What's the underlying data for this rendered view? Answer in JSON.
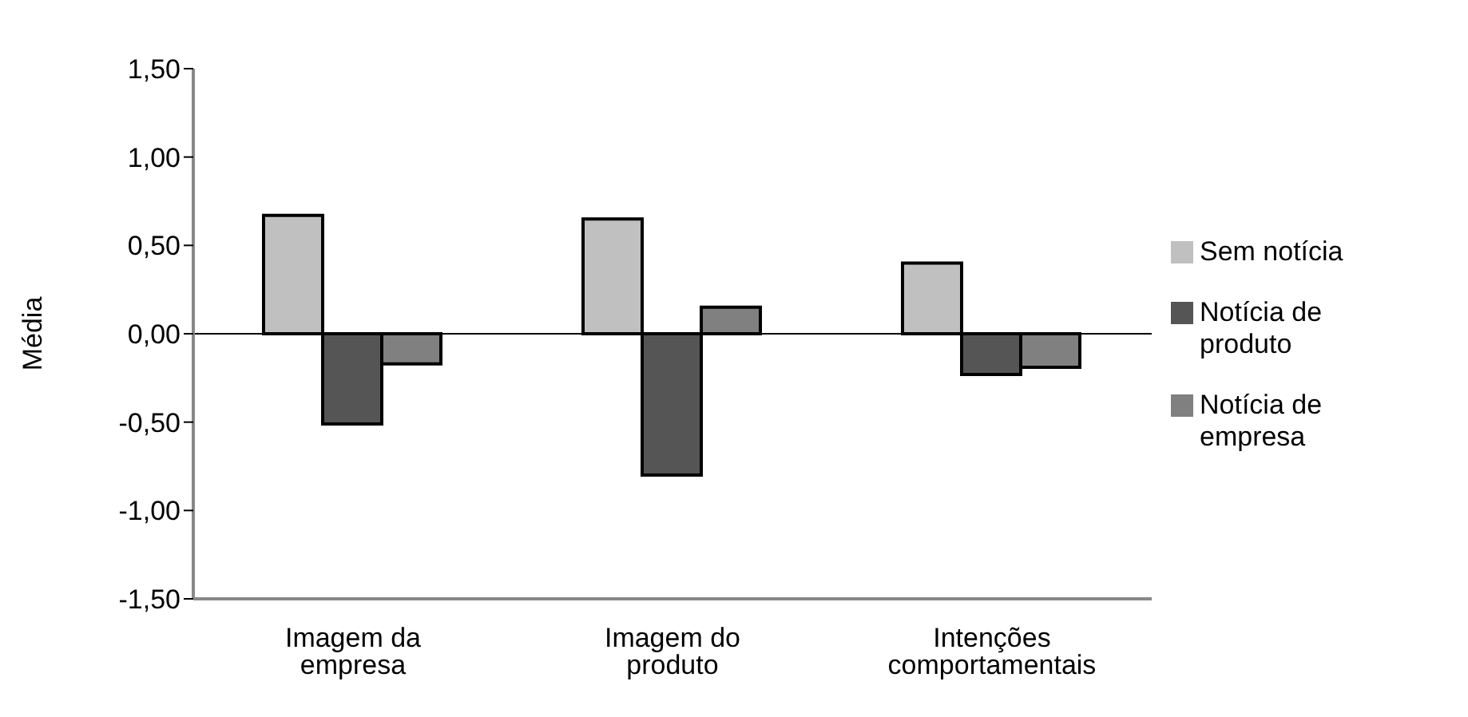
{
  "chart_data": {
    "type": "bar",
    "ylabel": "Média",
    "categories": [
      "Imagem da empresa",
      "Imagem do produto",
      "Intenções comportamentais"
    ],
    "series": [
      {
        "name": "Sem notícia",
        "color": "#c0c0c0",
        "values": [
          0.67,
          0.65,
          0.4
        ]
      },
      {
        "name": "Notícia de produto",
        "color": "#555555",
        "values": [
          -0.51,
          -0.8,
          -0.23
        ]
      },
      {
        "name": "Notícia de empresa",
        "color": "#808080",
        "values": [
          -0.17,
          0.15,
          -0.19
        ]
      }
    ],
    "ylim": [
      -1.5,
      1.5
    ],
    "yticks": [
      {
        "value": -1.5,
        "label": "-1,50"
      },
      {
        "value": -1,
        "label": "-1,00"
      },
      {
        "value": -0.5,
        "label": "-0,50"
      },
      {
        "value": 0,
        "label": "0,00"
      },
      {
        "value": 0.5,
        "label": "0,50"
      },
      {
        "value": 1,
        "label": "1,00"
      },
      {
        "value": 1.5,
        "label": "1,50"
      }
    ],
    "legend": "right"
  }
}
